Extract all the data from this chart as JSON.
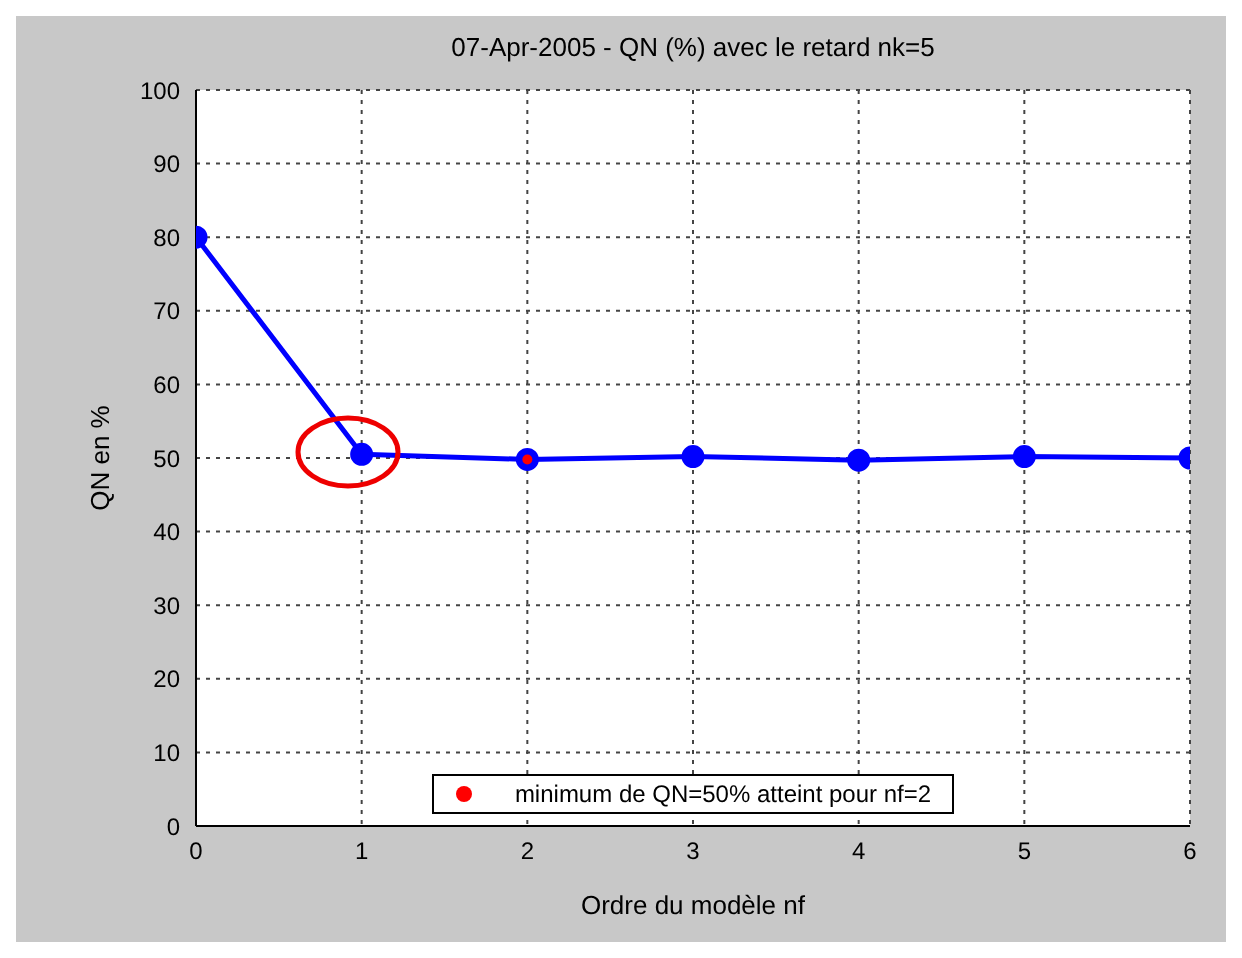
{
  "chart_data": {
    "type": "line",
    "title": "07-Apr-2005 - QN (%) avec le retard nk=5",
    "xlabel": "Ordre du modèle nf",
    "ylabel": "QN en %",
    "x": [
      0,
      1,
      2,
      3,
      4,
      5,
      6
    ],
    "series": [
      {
        "color": "#0000ff",
        "values": [
          80,
          50.5,
          49.8,
          50.2,
          49.7,
          50.2,
          50
        ],
        "marker": "circle"
      },
      {
        "type": "scatter",
        "name": "minimum de QN=50% atteint pour nf=2",
        "color": "#ff0000",
        "x": [
          2
        ],
        "values": [
          49.8
        ],
        "marker": "circle"
      }
    ],
    "xlim": [
      0,
      6
    ],
    "xticks": [
      0,
      1,
      2,
      3,
      4,
      5,
      6
    ],
    "ylim": [
      0,
      100
    ],
    "yticks": [
      0,
      10,
      20,
      30,
      40,
      50,
      60,
      70,
      80,
      90,
      100
    ],
    "grid": true,
    "legend": "bottom",
    "line_style": "solid"
  }
}
